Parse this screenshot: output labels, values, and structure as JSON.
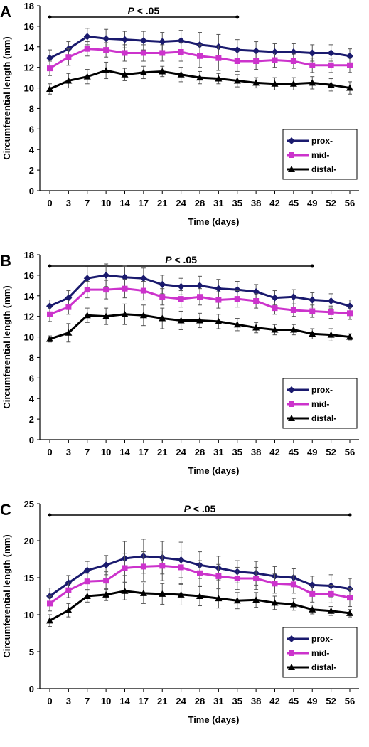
{
  "chart_data": [
    {
      "panel_label": "A",
      "type": "line",
      "xlabel": "Time (days)",
      "ylabel": "Circumferential length (mm)",
      "ylim": [
        0,
        18
      ],
      "yticks": [
        0,
        2,
        4,
        6,
        8,
        10,
        12,
        14,
        16,
        18
      ],
      "categories": [
        "0",
        "3",
        "7",
        "10",
        "14",
        "17",
        "21",
        "24",
        "28",
        "31",
        "35",
        "38",
        "42",
        "45",
        "49",
        "52",
        "56"
      ],
      "annotation": {
        "label_p": "P",
        "label_rest": " < .05",
        "from_day": "0",
        "to_day": "35"
      },
      "legend_position": "bottom-right",
      "series": [
        {
          "name": "prox-",
          "color": "#1a1a6e",
          "marker": "diamond",
          "values": [
            12.9,
            13.8,
            15.0,
            14.8,
            14.7,
            14.6,
            14.5,
            14.6,
            14.2,
            14.0,
            13.7,
            13.6,
            13.5,
            13.5,
            13.4,
            13.4,
            13.1
          ],
          "errors": [
            0.8,
            0.7,
            0.8,
            0.9,
            0.8,
            0.9,
            0.9,
            1.0,
            1.2,
            1.2,
            1.0,
            0.9,
            0.8,
            0.8,
            0.8,
            0.8,
            0.7
          ]
        },
        {
          "name": "mid-",
          "color": "#cc33cc",
          "marker": "square",
          "values": [
            11.9,
            13.0,
            13.8,
            13.7,
            13.4,
            13.4,
            13.4,
            13.5,
            13.1,
            12.9,
            12.6,
            12.6,
            12.7,
            12.6,
            12.2,
            12.2,
            12.2
          ],
          "errors": [
            0.7,
            0.8,
            0.7,
            0.7,
            0.8,
            0.8,
            0.8,
            0.9,
            1.1,
            1.2,
            1.0,
            0.8,
            0.7,
            0.7,
            0.7,
            0.7,
            0.7
          ]
        },
        {
          "name": "distal-",
          "color": "#000000",
          "marker": "triangle",
          "values": [
            9.9,
            10.7,
            11.1,
            11.7,
            11.3,
            11.5,
            11.6,
            11.3,
            11.0,
            10.9,
            10.7,
            10.5,
            10.4,
            10.4,
            10.5,
            10.3,
            10.0
          ],
          "errors": [
            0.5,
            0.7,
            0.7,
            0.8,
            0.6,
            0.6,
            0.5,
            0.7,
            0.6,
            0.5,
            0.6,
            0.5,
            0.6,
            0.6,
            0.6,
            0.6,
            0.6
          ]
        }
      ]
    },
    {
      "panel_label": "B",
      "type": "line",
      "xlabel": "Time (days)",
      "ylabel": "Circumferential length (mm)",
      "ylim": [
        0,
        18
      ],
      "yticks": [
        0,
        2,
        4,
        6,
        8,
        10,
        12,
        14,
        16,
        18
      ],
      "categories": [
        "0",
        "3",
        "7",
        "10",
        "14",
        "17",
        "21",
        "24",
        "28",
        "31",
        "35",
        "38",
        "42",
        "45",
        "49",
        "52",
        "56"
      ],
      "annotation": {
        "label_p": "P",
        "label_rest": " < .05",
        "from_day": "0",
        "to_day": "49"
      },
      "legend_position": "bottom-right",
      "series": [
        {
          "name": "prox-",
          "color": "#1a1a6e",
          "marker": "diamond",
          "values": [
            13.0,
            13.8,
            15.7,
            16.0,
            15.8,
            15.7,
            15.1,
            14.9,
            15.0,
            14.7,
            14.6,
            14.4,
            13.8,
            13.9,
            13.6,
            13.5,
            13.0
          ],
          "errors": [
            0.6,
            0.7,
            1.1,
            1.1,
            1.1,
            1.0,
            0.9,
            0.8,
            0.9,
            0.9,
            0.8,
            0.7,
            0.7,
            0.7,
            0.7,
            0.7,
            0.6
          ]
        },
        {
          "name": "mid-",
          "color": "#cc33cc",
          "marker": "square",
          "values": [
            12.2,
            12.9,
            14.6,
            14.6,
            14.7,
            14.5,
            13.9,
            13.7,
            13.9,
            13.6,
            13.7,
            13.5,
            12.8,
            12.6,
            12.5,
            12.4,
            12.3
          ],
          "errors": [
            0.7,
            0.7,
            0.8,
            0.9,
            0.9,
            0.9,
            0.8,
            0.8,
            0.8,
            0.8,
            0.8,
            0.7,
            0.6,
            0.6,
            0.6,
            0.6,
            0.6
          ]
        },
        {
          "name": "distal-",
          "color": "#000000",
          "marker": "triangle",
          "values": [
            9.8,
            10.4,
            12.1,
            12.0,
            12.2,
            12.1,
            11.8,
            11.6,
            11.6,
            11.5,
            11.2,
            10.9,
            10.7,
            10.7,
            10.3,
            10.2,
            10.0
          ],
          "errors": [
            0.3,
            0.9,
            0.7,
            0.8,
            1.0,
            1.0,
            1.0,
            0.9,
            0.7,
            0.7,
            0.6,
            0.5,
            0.5,
            0.5,
            0.5,
            0.6,
            0.3
          ]
        }
      ]
    },
    {
      "panel_label": "C",
      "type": "line",
      "xlabel": "Time (days)",
      "ylabel": "Circumferential length (mm)",
      "ylim": [
        0,
        25
      ],
      "yticks": [
        0,
        5,
        10,
        15,
        20,
        25
      ],
      "categories": [
        "0",
        "3",
        "7",
        "10",
        "14",
        "17",
        "21",
        "24",
        "28",
        "31",
        "35",
        "38",
        "42",
        "45",
        "49",
        "52",
        "56"
      ],
      "annotation": {
        "label_p": "P",
        "label_rest": " < .05",
        "from_day": "0",
        "to_day": "56"
      },
      "legend_position": "bottom-right",
      "series": [
        {
          "name": "prox-",
          "color": "#1a1a6e",
          "marker": "diamond",
          "values": [
            12.5,
            14.3,
            16.0,
            16.7,
            17.6,
            17.9,
            17.7,
            17.4,
            16.7,
            16.3,
            15.8,
            15.6,
            15.2,
            15.0,
            14.0,
            13.9,
            13.5
          ],
          "errors": [
            1.1,
            1.0,
            1.2,
            1.3,
            2.3,
            2.3,
            2.2,
            2.4,
            1.8,
            1.6,
            1.5,
            1.6,
            1.3,
            1.2,
            1.2,
            1.5,
            1.4
          ]
        },
        {
          "name": "mid-",
          "color": "#cc33cc",
          "marker": "square",
          "values": [
            11.5,
            13.3,
            14.5,
            14.6,
            16.3,
            16.5,
            16.6,
            16.4,
            15.6,
            15.2,
            14.9,
            14.9,
            14.2,
            14.1,
            12.8,
            12.8,
            12.3
          ],
          "errors": [
            1.0,
            1.0,
            1.1,
            1.2,
            2.0,
            2.0,
            2.0,
            2.2,
            1.7,
            1.6,
            1.5,
            1.5,
            1.3,
            1.2,
            1.1,
            1.2,
            1.2
          ]
        },
        {
          "name": "distal-",
          "color": "#000000",
          "marker": "triangle",
          "values": [
            9.2,
            10.6,
            12.5,
            12.7,
            13.2,
            12.9,
            12.8,
            12.7,
            12.5,
            12.2,
            11.9,
            12.0,
            11.6,
            11.4,
            10.7,
            10.5,
            10.2
          ],
          "errors": [
            0.8,
            0.9,
            0.8,
            0.8,
            1.2,
            1.4,
            1.4,
            1.4,
            1.3,
            1.3,
            1.1,
            1.0,
            0.9,
            0.8,
            0.6,
            0.6,
            0.5
          ]
        }
      ]
    }
  ]
}
